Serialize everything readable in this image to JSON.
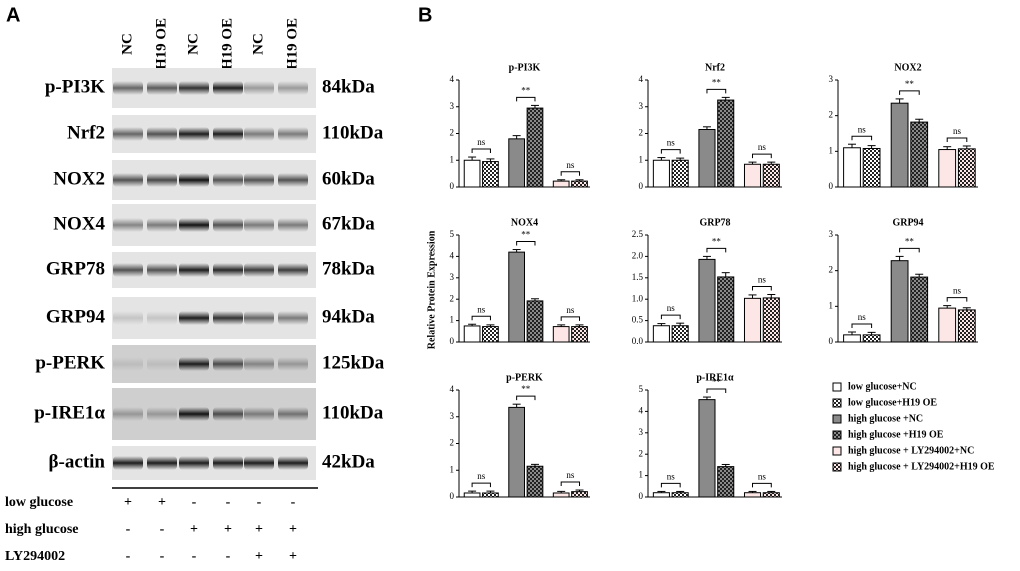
{
  "panel_a": {
    "label": "A",
    "lanes": [
      "NC",
      "H19 OE",
      "NC",
      "H19 OE",
      "NC",
      "H19 OE"
    ],
    "blots": [
      {
        "protein": "p-PI3K",
        "size": "84kDa"
      },
      {
        "protein": "Nrf2",
        "size": "110kDa"
      },
      {
        "protein": "NOX2",
        "size": "60kDa"
      },
      {
        "protein": "NOX4",
        "size": "67kDa"
      },
      {
        "protein": "GRP78",
        "size": "78kDa"
      },
      {
        "protein": "GRP94",
        "size": "94kDa"
      },
      {
        "protein": "p-PERK",
        "size": "125kDa"
      },
      {
        "protein": "p-IRE1α",
        "size": "110kDa"
      },
      {
        "protein": "β-actin",
        "size": "42kDa"
      }
    ],
    "conditions": [
      {
        "name": "low glucose",
        "marks": [
          "+",
          "+",
          "-",
          "-",
          "-",
          "-"
        ]
      },
      {
        "name": "high glucose",
        "marks": [
          "-",
          "-",
          "+",
          "+",
          "+",
          "+"
        ]
      },
      {
        "name": "LY294002",
        "marks": [
          "-",
          "-",
          "-",
          "-",
          "+",
          "+"
        ]
      }
    ]
  },
  "panel_b": {
    "label": "B",
    "ylabel": "Relative Protein Expression",
    "groups": [
      {
        "name": "low glucose+NC",
        "color": "#ffffff",
        "pattern": "solid"
      },
      {
        "name": "low glucose+H19 OE",
        "color": "#ffffff",
        "pattern": "checker"
      },
      {
        "name": "high glucose +NC",
        "color": "#8a8a8a",
        "pattern": "solid"
      },
      {
        "name": "high glucose +H19 OE",
        "color": "#8a8a8a",
        "pattern": "checker"
      },
      {
        "name": "high glucose + LY294002+NC",
        "color": "#fde6e6",
        "pattern": "solid"
      },
      {
        "name": "high glucose + LY294002+H19 OE",
        "color": "#fde6e6",
        "pattern": "checker"
      }
    ]
  },
  "chart_data": [
    {
      "type": "bar",
      "title": "p-PI3K",
      "values": [
        1.0,
        0.95,
        1.8,
        2.95,
        0.22,
        0.22
      ],
      "errors": [
        0.12,
        0.1,
        0.12,
        0.1,
        0.05,
        0.05
      ],
      "ylim": [
        0,
        4
      ],
      "yticks": [
        0,
        1,
        2,
        3,
        4
      ],
      "annotations": [
        "ns",
        "**",
        "ns"
      ]
    },
    {
      "type": "bar",
      "title": "Nrf2",
      "values": [
        1.0,
        1.0,
        2.15,
        3.25,
        0.85,
        0.85
      ],
      "errors": [
        0.1,
        0.08,
        0.1,
        0.1,
        0.08,
        0.08
      ],
      "ylim": [
        0,
        4
      ],
      "yticks": [
        0,
        1,
        2,
        3,
        4
      ],
      "annotations": [
        "ns",
        "**",
        "ns"
      ]
    },
    {
      "type": "bar",
      "title": "NOX2",
      "values": [
        1.1,
        1.08,
        2.35,
        1.82,
        1.05,
        1.07
      ],
      "errors": [
        0.1,
        0.08,
        0.12,
        0.08,
        0.08,
        0.08
      ],
      "ylim": [
        0,
        3
      ],
      "yticks": [
        0,
        1,
        2,
        3
      ],
      "annotations": [
        "ns",
        "**",
        "ns"
      ]
    },
    {
      "type": "bar",
      "title": "NOX4",
      "values": [
        0.75,
        0.72,
        4.2,
        1.92,
        0.72,
        0.72
      ],
      "errors": [
        0.08,
        0.08,
        0.12,
        0.1,
        0.08,
        0.08
      ],
      "ylim": [
        0,
        5
      ],
      "yticks": [
        0,
        1,
        2,
        3,
        4,
        5
      ],
      "annotations": [
        "ns",
        "**",
        "ns"
      ]
    },
    {
      "type": "bar",
      "title": "GRP78",
      "values": [
        0.38,
        0.38,
        1.93,
        1.52,
        1.02,
        1.03
      ],
      "errors": [
        0.05,
        0.06,
        0.07,
        0.1,
        0.08,
        0.08
      ],
      "ylim": [
        0,
        2.5
      ],
      "yticks": [
        {
          "value": 0,
          "label": "0.0"
        },
        {
          "value": 0.5,
          "label": "0.5"
        },
        {
          "value": 1,
          "label": "1.0"
        },
        {
          "value": 1.5,
          "label": "1.5"
        },
        {
          "value": 2,
          "label": "2.0"
        },
        {
          "value": 2.5,
          "label": "2.5"
        }
      ],
      "annotations": [
        "ns",
        "**",
        "ns"
      ]
    },
    {
      "type": "bar",
      "title": "GRP94",
      "values": [
        0.2,
        0.2,
        2.28,
        1.82,
        0.95,
        0.9
      ],
      "errors": [
        0.08,
        0.07,
        0.12,
        0.08,
        0.07,
        0.06
      ],
      "ylim": [
        0,
        3
      ],
      "yticks": [
        0,
        1,
        2,
        3
      ],
      "annotations": [
        "ns",
        "**",
        "ns"
      ]
    },
    {
      "type": "bar",
      "title": "p-PERK",
      "values": [
        0.15,
        0.15,
        3.35,
        1.15,
        0.15,
        0.2
      ],
      "errors": [
        0.07,
        0.07,
        0.12,
        0.07,
        0.06,
        0.06
      ],
      "ylim": [
        0,
        4
      ],
      "yticks": [
        0,
        1,
        2,
        3,
        4
      ],
      "annotations": [
        "ns",
        "**",
        "ns"
      ]
    },
    {
      "type": "bar",
      "title": "p-IRE1α",
      "values": [
        0.2,
        0.2,
        4.55,
        1.42,
        0.2,
        0.2
      ],
      "errors": [
        0.06,
        0.06,
        0.12,
        0.1,
        0.06,
        0.06
      ],
      "ylim": [
        0,
        5
      ],
      "yticks": [
        0,
        1,
        2,
        3,
        4,
        5
      ],
      "annotations": [
        "ns",
        "**",
        "ns"
      ]
    }
  ]
}
